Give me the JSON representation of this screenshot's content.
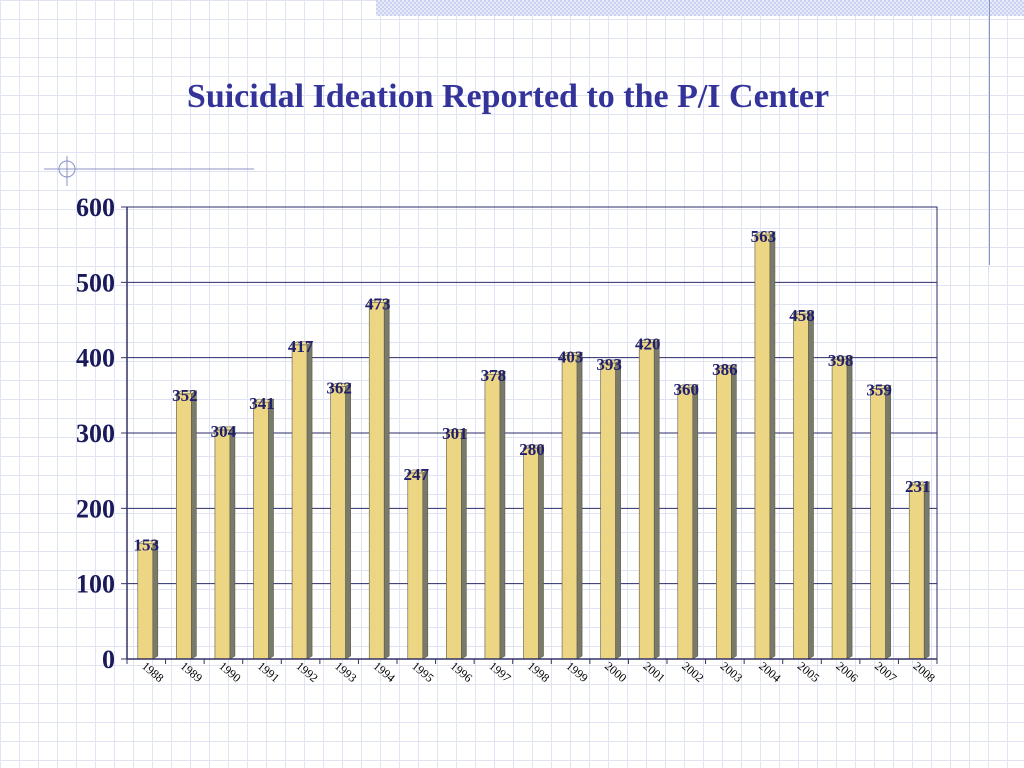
{
  "slide": {
    "title": "Suicidal Ideation Reported to the P/I Center"
  },
  "colors": {
    "bar_face": "#ecd583",
    "bar_side": "#7a7a6a",
    "bar_edge": "#5a5a4a",
    "axis": "#333366",
    "grid": "#2b2b6b",
    "title": "#333399"
  },
  "chart_data": {
    "type": "bar",
    "title": "Suicidal Ideation Reported to the P/I Center",
    "xlabel": "",
    "ylabel": "",
    "categories": [
      "1988",
      "1989",
      "1990",
      "1991",
      "1992",
      "1993",
      "1994",
      "1995",
      "1996",
      "1997",
      "1998",
      "1999",
      "2000",
      "2001",
      "2002",
      "2003",
      "2004",
      "2005",
      "2006",
      "2007",
      "2008"
    ],
    "values": [
      153,
      352,
      304,
      341,
      417,
      362,
      473,
      247,
      301,
      378,
      280,
      403,
      393,
      420,
      360,
      386,
      563,
      458,
      398,
      359,
      231
    ],
    "ylim": [
      0,
      600
    ],
    "yticks": [
      0,
      100,
      200,
      300,
      400,
      500,
      600
    ],
    "grid": true,
    "legend": "none",
    "data_labels": true
  }
}
